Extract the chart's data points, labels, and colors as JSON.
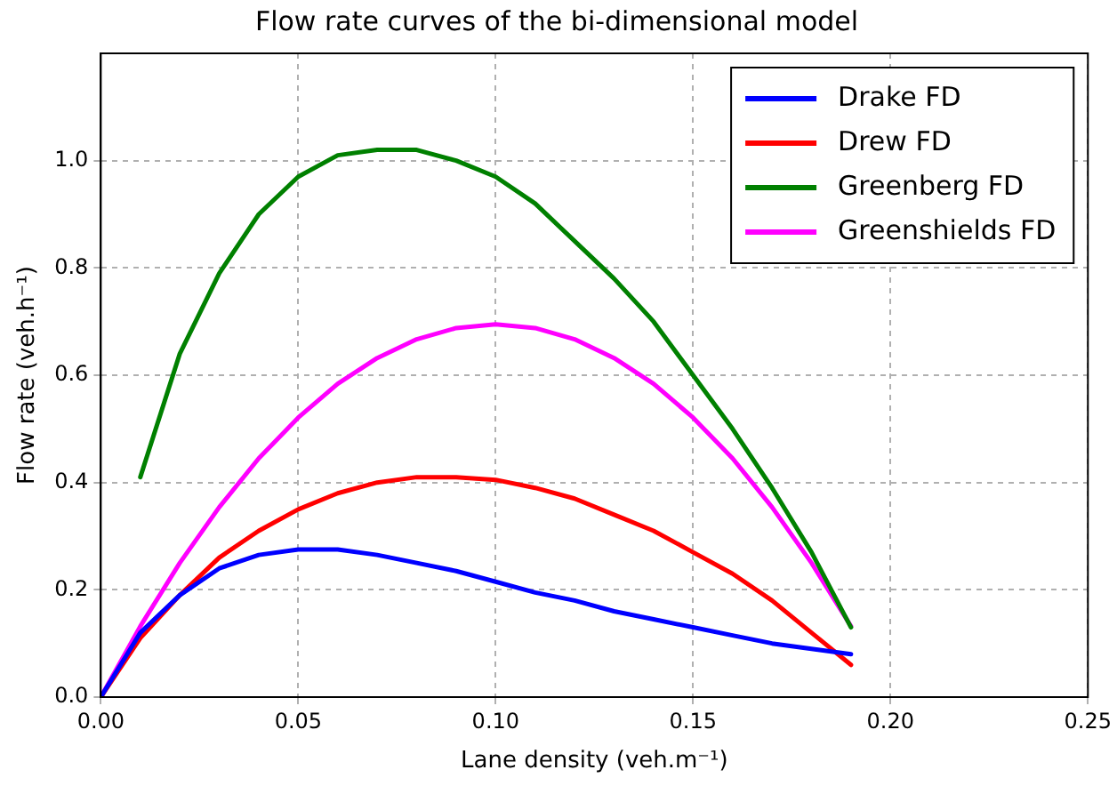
{
  "chart_data": {
    "type": "line",
    "title": "Flow rate curves of the bi-dimensional model",
    "xlabel": "Lane density (veh.m⁻¹)",
    "ylabel": "Flow rate (veh.h⁻¹)",
    "x": [
      0,
      0.01,
      0.02,
      0.03,
      0.04,
      0.05,
      0.06,
      0.07,
      0.08,
      0.09,
      0.1,
      0.11,
      0.12,
      0.13,
      0.14,
      0.15,
      0.16,
      0.17,
      0.18,
      0.19
    ],
    "series": [
      {
        "name": "Drake FD",
        "color": "#0000ff",
        "values": [
          0,
          0.12,
          0.19,
          0.24,
          0.265,
          0.275,
          0.275,
          0.265,
          0.25,
          0.235,
          0.215,
          0.195,
          0.18,
          0.16,
          0.145,
          0.13,
          0.115,
          0.1,
          0.09,
          0.08
        ]
      },
      {
        "name": "Drew FD",
        "color": "#ff0000",
        "values": [
          0,
          0.11,
          0.19,
          0.26,
          0.31,
          0.35,
          0.38,
          0.4,
          0.41,
          0.41,
          0.405,
          0.39,
          0.37,
          0.34,
          0.31,
          0.27,
          0.23,
          0.18,
          0.12,
          0.06
        ]
      },
      {
        "name": "Greenberg FD",
        "color": "#008000",
        "values": [
          null,
          0.41,
          0.64,
          0.79,
          0.9,
          0.97,
          1.01,
          1.02,
          1.02,
          1.0,
          0.97,
          0.92,
          0.85,
          0.78,
          0.7,
          0.6,
          0.5,
          0.39,
          0.27,
          0.13
        ]
      },
      {
        "name": "Greenshields FD",
        "color": "#ff00ff",
        "values": [
          0,
          0.132,
          0.25,
          0.354,
          0.445,
          0.521,
          0.584,
          0.632,
          0.667,
          0.688,
          0.695,
          0.688,
          0.667,
          0.632,
          0.584,
          0.521,
          0.445,
          0.354,
          0.25,
          0.132
        ]
      }
    ],
    "xlim": [
      0,
      0.25
    ],
    "xticks": [
      {
        "value": 0,
        "label": "0.00"
      },
      {
        "value": 0.05,
        "label": "0.05"
      },
      {
        "value": 0.1,
        "label": "0.10"
      },
      {
        "value": 0.15,
        "label": "0.15"
      },
      {
        "value": 0.2,
        "label": "0.20"
      },
      {
        "value": 0.25,
        "label": "0.25"
      }
    ],
    "ylim": [
      0,
      1.2
    ],
    "yticks": [
      {
        "value": 0,
        "label": "0.0"
      },
      {
        "value": 0.2,
        "label": "0.2"
      },
      {
        "value": 0.4,
        "label": "0.4"
      },
      {
        "value": 0.6,
        "label": "0.6"
      },
      {
        "value": 0.8,
        "label": "0.8"
      },
      {
        "value": 1,
        "label": "1.0"
      }
    ],
    "grid": true,
    "legend": "top right",
    "marker": "none",
    "line_style": "solid"
  }
}
